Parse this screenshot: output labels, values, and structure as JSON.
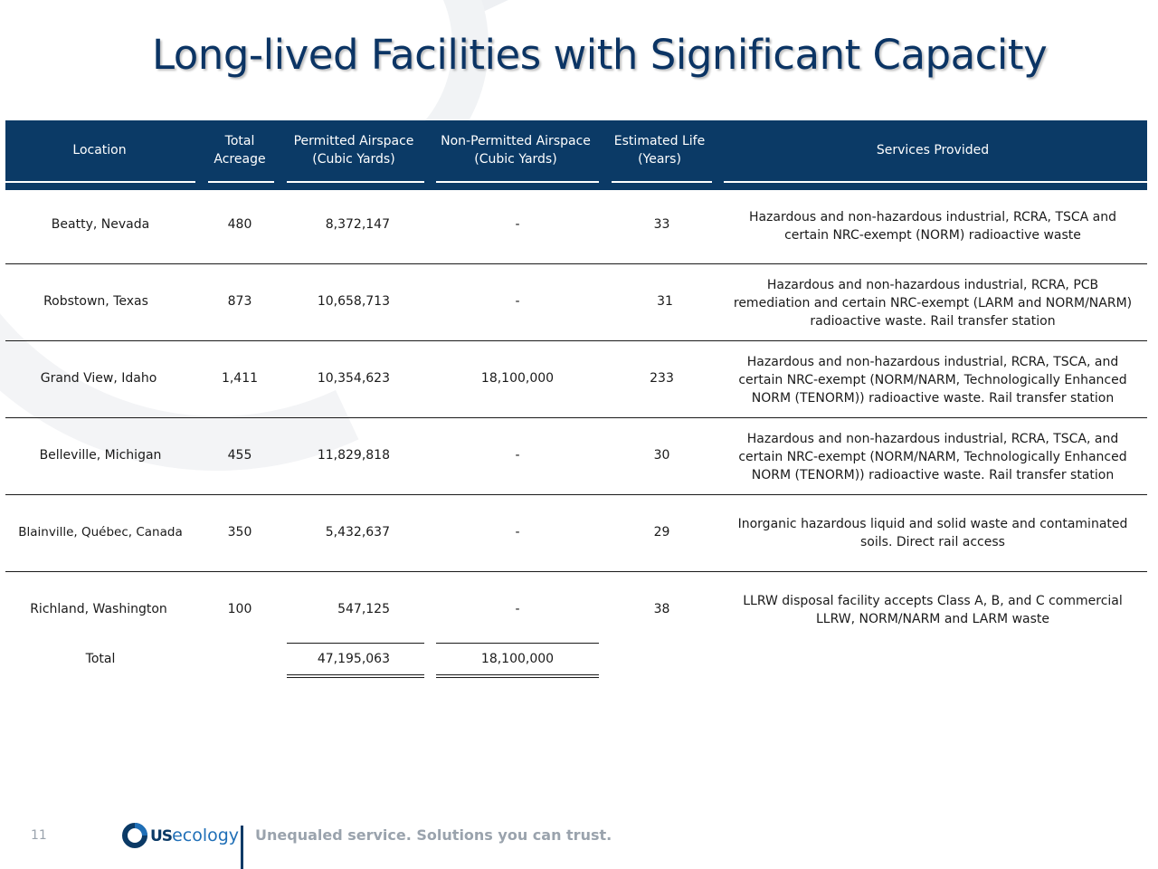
{
  "title": "Long-lived Facilities with Significant Capacity",
  "table": {
    "headers": {
      "location": "Location",
      "acreage_line1": "Total",
      "acreage_line2": "Acreage",
      "permitted_line1": "Permitted Airspace",
      "permitted_line2": "(Cubic Yards)",
      "nonpermitted_line1": "Non-Permitted Airspace",
      "nonpermitted_line2": "(Cubic Yards)",
      "life_line1": "Estimated Life",
      "life_line2": "(Years)",
      "services": "Services Provided"
    },
    "rows": [
      {
        "location": "Beatty, Nevada",
        "acreage": "480",
        "permitted": "8,372,147",
        "nonpermitted": "-",
        "life": "33",
        "services": [
          "Hazardous and non-hazardous industrial, RCRA, TSCA and",
          "certain NRC-exempt (NORM) radioactive waste"
        ]
      },
      {
        "location": "Robstown, Texas",
        "acreage": "873",
        "permitted": "10,658,713",
        "nonpermitted": "-",
        "life": "31",
        "services": [
          "Hazardous and non-hazardous industrial, RCRA, PCB",
          "remediation and certain NRC-exempt (LARM and NORM/NARM)",
          "radioactive waste. Rail transfer station"
        ]
      },
      {
        "location": "Grand View, Idaho",
        "acreage": "1,411",
        "permitted": "10,354,623",
        "nonpermitted": "18,100,000",
        "life": "233",
        "services": [
          "Hazardous and non-hazardous industrial, RCRA, TSCA, and",
          "certain NRC-exempt (NORM/NARM, Technologically Enhanced",
          "NORM (TENORM)) radioactive waste. Rail transfer station"
        ]
      },
      {
        "location": "Belleville, Michigan",
        "acreage": "455",
        "permitted": "11,829,818",
        "nonpermitted": "-",
        "life": "30",
        "services": [
          "Hazardous and non-hazardous industrial, RCRA, TSCA, and",
          "certain NRC-exempt (NORM/NARM, Technologically Enhanced",
          "NORM (TENORM)) radioactive waste. Rail transfer station"
        ]
      },
      {
        "location": "Blainville, Québec, Canada",
        "acreage": "350",
        "permitted": "5,432,637",
        "nonpermitted": "-",
        "life": "29",
        "services": [
          "Inorganic hazardous liquid and solid waste and contaminated",
          "soils. Direct rail access"
        ]
      },
      {
        "location": "Richland, Washington",
        "acreage": "100",
        "permitted": "547,125",
        "nonpermitted": "-",
        "life": "38",
        "services": [
          "LLRW disposal facility accepts Class A, B, and C commercial",
          "LLRW, NORM/NARM and LARM waste"
        ]
      }
    ],
    "total": {
      "label": "Total",
      "permitted": "47,195,063",
      "nonpermitted": "18,100,000"
    }
  },
  "footer": {
    "page_number": "11",
    "logo_us": "US",
    "logo_ecology": "ecology",
    "tagline": "Unequaled service. Solutions you can trust."
  },
  "colors": {
    "header_band": "#0b3a66",
    "title": "#0b3464"
  }
}
